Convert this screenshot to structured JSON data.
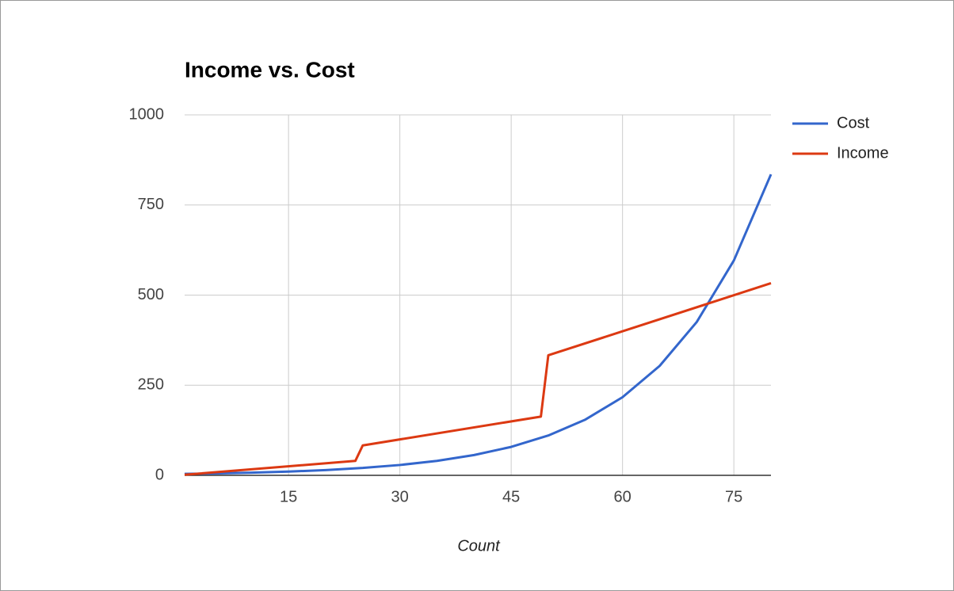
{
  "chart_data": {
    "type": "line",
    "title": "Income vs. Cost",
    "x_label": "Count",
    "xlim": [
      1,
      80
    ],
    "xticks": [
      15,
      30,
      45,
      60,
      75
    ],
    "ylim": [
      0,
      1000
    ],
    "yticks": [
      0,
      250,
      500,
      750,
      1000
    ],
    "grid": true,
    "legend": "right",
    "series": [
      {
        "name": "Cost",
        "color": "#3366cc",
        "x": [
          1,
          5,
          10,
          15,
          20,
          25,
          30,
          35,
          40,
          45,
          50,
          55,
          60,
          65,
          70,
          75,
          80
        ],
        "values": [
          4.1,
          5.3,
          7.5,
          10.4,
          14.6,
          20.5,
          28.7,
          40.2,
          56.3,
          78.9,
          110.5,
          154.8,
          216.7,
          303.6,
          425.4,
          596,
          835
        ]
      },
      {
        "name": "Income",
        "color": "#dc3912",
        "x": [
          1,
          24,
          25,
          49,
          50,
          80
        ],
        "values": [
          1.67,
          40,
          83,
          163,
          333,
          533
        ]
      }
    ]
  }
}
